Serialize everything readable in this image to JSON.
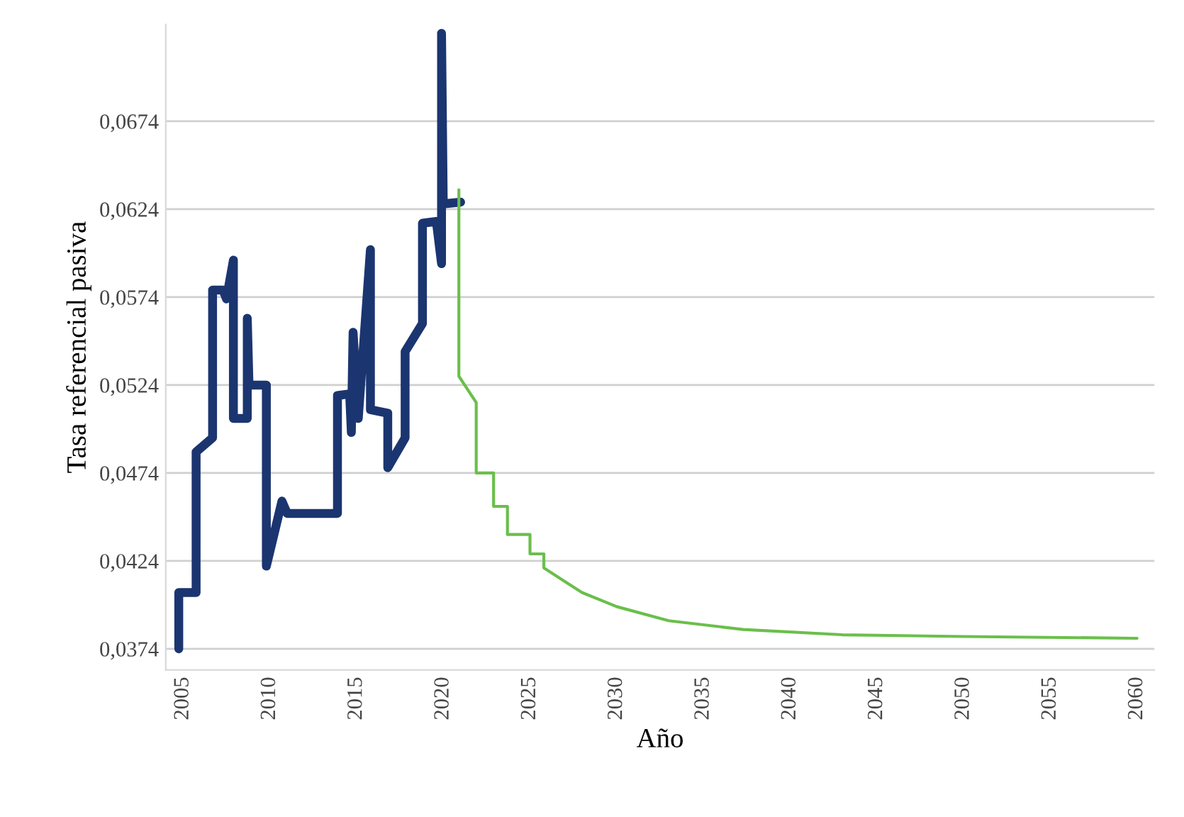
{
  "chart_data": {
    "type": "line",
    "xlabel": "Año",
    "ylabel": "Tasa referencial pasiva",
    "series": [
      {
        "color": "#1b3570",
        "x": [
          2004.75,
          2004.75,
          2005.75,
          2005.75,
          2006.7,
          2006.7,
          2007.3,
          2007.5,
          2007.9,
          2007.9,
          2008.7,
          2008.7,
          2008.8,
          2009.8,
          2009.8,
          2010.7,
          2011,
          2013.9,
          2013.9,
          2014.6,
          2014.7,
          2014.8,
          2015.1,
          2015.8,
          2015.8,
          2016.8,
          2016.8,
          2017.8,
          2017.8,
          2018.8,
          2018.8,
          2019.6,
          2019.9,
          2019.9,
          2020.0,
          2021.0
        ],
        "values": [
          0.0374,
          0.0406,
          0.0406,
          0.0486,
          0.0494,
          0.0578,
          0.0578,
          0.0573,
          0.0595,
          0.0505,
          0.0505,
          0.0562,
          0.0524,
          0.0524,
          0.0421,
          0.0458,
          0.0451,
          0.0451,
          0.0518,
          0.0519,
          0.0497,
          0.0554,
          0.0505,
          0.0601,
          0.051,
          0.0508,
          0.0477,
          0.0494,
          0.0543,
          0.0559,
          0.0616,
          0.0617,
          0.0593,
          0.0724,
          0.0627,
          0.0628
        ]
      },
      {
        "color": "#6abf4b",
        "x": [
          2020.9,
          2020.9,
          2021.9,
          2021.9,
          2022.9,
          2022.9,
          2023.7,
          2023.7,
          2025.0,
          2025.0,
          2025.8,
          2025.8,
          2026.9,
          2028.0,
          2030.0,
          2033.0,
          2037.3,
          2043.0,
          2050.0,
          2060.0
        ],
        "values": [
          0.0635,
          0.0529,
          0.0514,
          0.0474,
          0.0474,
          0.0455,
          0.0455,
          0.0439,
          0.0439,
          0.0428,
          0.0428,
          0.042,
          0.0413,
          0.0406,
          0.0398,
          0.039,
          0.0385,
          0.0382,
          0.0381,
          0.038
        ]
      }
    ],
    "xlim": [
      2004,
      2061
    ],
    "xticks": [
      2005,
      2010,
      2015,
      2020,
      2025,
      2030,
      2035,
      2040,
      2045,
      2050,
      2055,
      2060
    ],
    "ylim": [
      0.0362,
      0.0729
    ],
    "yticks": [
      {
        "value": 0.0374,
        "label": "0,0374"
      },
      {
        "value": 0.0424,
        "label": "0,0424"
      },
      {
        "value": 0.0474,
        "label": "0,0474"
      },
      {
        "value": 0.0524,
        "label": "0,0524"
      },
      {
        "value": 0.0574,
        "label": "0,0574"
      },
      {
        "value": 0.0624,
        "label": "0,0624"
      },
      {
        "value": 0.0674,
        "label": "0,0674"
      }
    ],
    "grid": "y",
    "legend": false
  }
}
